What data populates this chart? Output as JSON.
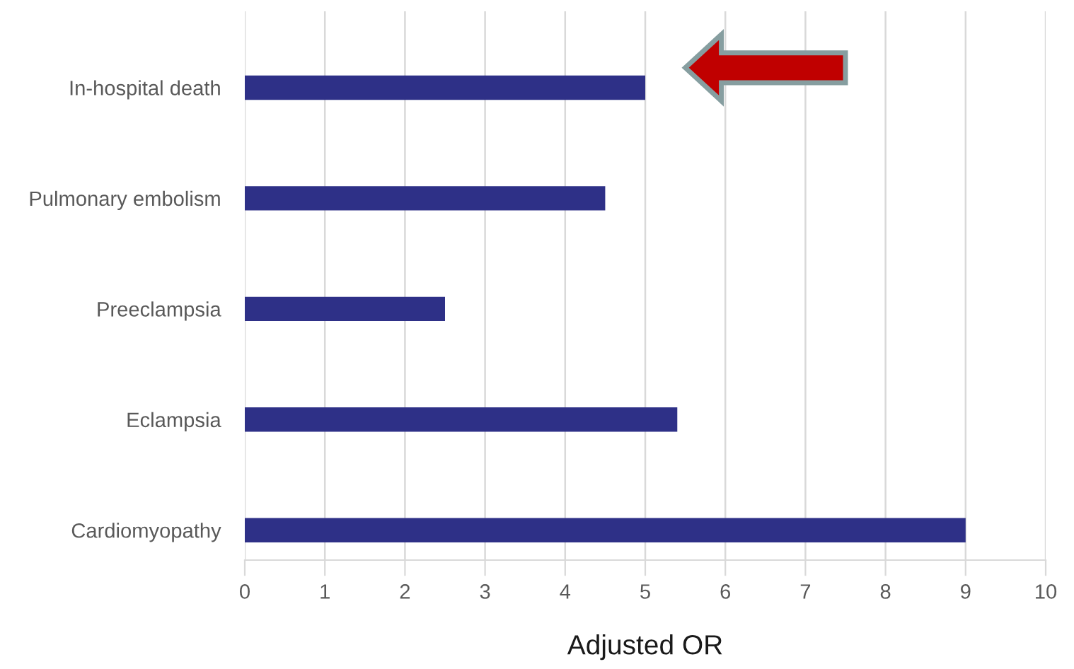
{
  "chart_data": {
    "type": "bar",
    "orientation": "horizontal",
    "xlabel": "Adjusted OR",
    "categories": [
      "In-hospital death",
      "Pulmonary embolism",
      "Preeclampsia",
      "Eclampsia",
      "Cardiomyopathy"
    ],
    "values": [
      5.0,
      4.5,
      2.5,
      5.4,
      9.0
    ],
    "color": "#2e3087",
    "xlim": [
      0,
      10
    ],
    "xticks": [
      0,
      1,
      2,
      3,
      4,
      5,
      6,
      7,
      8,
      9,
      10
    ],
    "grid": "x"
  }
}
